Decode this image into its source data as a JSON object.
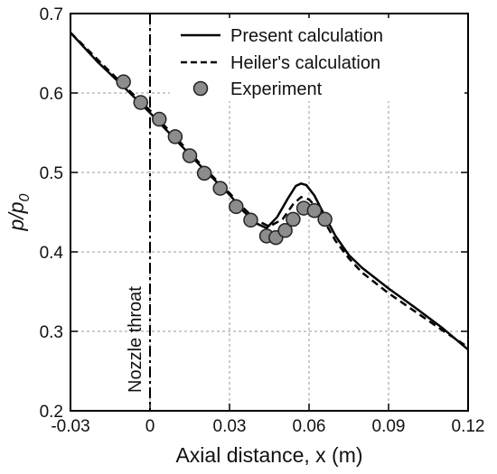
{
  "chart_data": {
    "type": "line",
    "xlabel": "Axial distance, x (m)",
    "ylabel_main": "p/p",
    "ylabel_sub": "0",
    "xlim": [
      -0.03,
      0.12
    ],
    "ylim": [
      0.2,
      0.7
    ],
    "x_ticks": [
      -0.03,
      0,
      0.03,
      0.06,
      0.09,
      0.12
    ],
    "x_tick_labels": [
      "-0.03",
      "0",
      "0.03",
      "0.06",
      "0.09",
      "0.12"
    ],
    "y_ticks": [
      0.2,
      0.3,
      0.4,
      0.5,
      0.6,
      0.7
    ],
    "y_tick_labels": [
      "0.2",
      "0.3",
      "0.4",
      "0.5",
      "0.6",
      "0.7"
    ],
    "grid": true,
    "legend_position": "top-right",
    "annotation": {
      "text": "Nozzle throat",
      "x": 0
    },
    "series": [
      {
        "name": "Present calculation",
        "style": "solid",
        "x": [
          -0.03,
          -0.02,
          -0.01,
          0,
          0.01,
          0.02,
          0.03,
          0.035,
          0.04,
          0.044,
          0.048,
          0.052,
          0.055,
          0.057,
          0.059,
          0.062,
          0.066,
          0.07,
          0.075,
          0.08,
          0.09,
          0.1,
          0.11,
          0.12
        ],
        "y": [
          0.676,
          0.64,
          0.608,
          0.575,
          0.54,
          0.505,
          0.472,
          0.452,
          0.436,
          0.43,
          0.444,
          0.467,
          0.483,
          0.486,
          0.484,
          0.471,
          0.445,
          0.42,
          0.396,
          0.38,
          0.354,
          0.33,
          0.305,
          0.277
        ]
      },
      {
        "name": "Heiler's calculation",
        "style": "dashed",
        "x": [
          -0.03,
          -0.02,
          -0.01,
          0,
          0.01,
          0.02,
          0.03,
          0.035,
          0.04,
          0.045,
          0.05,
          0.054,
          0.057,
          0.06,
          0.063,
          0.066,
          0.07,
          0.075,
          0.08,
          0.09,
          0.1,
          0.11,
          0.12
        ],
        "y": [
          0.676,
          0.643,
          0.61,
          0.578,
          0.543,
          0.507,
          0.474,
          0.456,
          0.44,
          0.432,
          0.441,
          0.46,
          0.469,
          0.466,
          0.455,
          0.437,
          0.414,
          0.392,
          0.374,
          0.348,
          0.325,
          0.302,
          0.28
        ]
      },
      {
        "name": "Experiment",
        "style": "markers",
        "x": [
          -0.01,
          -0.0035,
          0.0035,
          0.0095,
          0.015,
          0.0205,
          0.0265,
          0.0325,
          0.038,
          0.044,
          0.0475,
          0.051,
          0.054,
          0.058,
          0.062,
          0.066
        ],
        "y": [
          0.614,
          0.588,
          0.567,
          0.545,
          0.521,
          0.499,
          0.48,
          0.457,
          0.44,
          0.42,
          0.418,
          0.427,
          0.441,
          0.455,
          0.452,
          0.441
        ]
      }
    ]
  }
}
